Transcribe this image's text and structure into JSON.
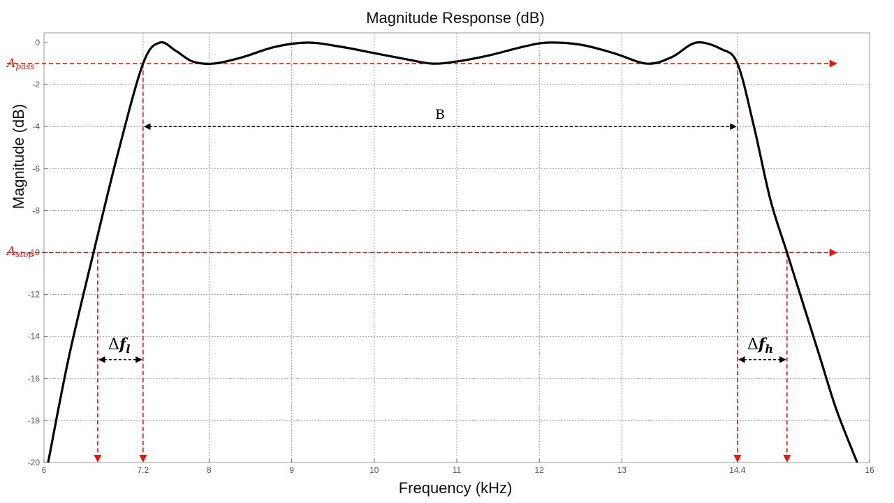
{
  "chart_data": {
    "type": "line",
    "title": "Magnitude Response (dB)",
    "xlabel": "Frequency (kHz)",
    "ylabel": "Magnitude (dB)",
    "xlim": [
      6,
      16
    ],
    "ylim": [
      -20,
      0.5
    ],
    "grid": true,
    "x_ticks": [
      "6",
      "7.2",
      "8",
      "9",
      "10",
      "11",
      "12",
      "13",
      "14.4",
      "16"
    ],
    "y_ticks": [
      "0",
      "-2",
      "-4",
      "-6",
      "-8",
      "-10",
      "-12",
      "-14",
      "-16",
      "-18",
      "-20"
    ],
    "series": [
      {
        "x": [
          6.05,
          6.3,
          6.6,
          6.9,
          7.2,
          7.4,
          7.6,
          7.8,
          8.05,
          8.4,
          8.8,
          9.2,
          9.6,
          10.0,
          10.4,
          10.7,
          11.0,
          11.4,
          11.8,
          12.1,
          12.5,
          12.9,
          13.3,
          13.6,
          13.9,
          14.2,
          14.4,
          14.6,
          14.8,
          15.0,
          15.2,
          15.4,
          15.6,
          15.85
        ],
        "y": [
          -20.0,
          -15.0,
          -10.0,
          -5.2,
          -1.0,
          0.0,
          -0.4,
          -0.9,
          -1.0,
          -0.7,
          -0.2,
          0.0,
          -0.2,
          -0.5,
          -0.8,
          -1.0,
          -0.9,
          -0.6,
          -0.2,
          0.0,
          -0.1,
          -0.5,
          -1.0,
          -0.7,
          0.0,
          -0.3,
          -1.0,
          -4.0,
          -7.5,
          -10.0,
          -12.5,
          -15.0,
          -17.5,
          -20.0
        ]
      }
    ],
    "annotations": {
      "a_pass": {
        "label": "A",
        "sub": "pass",
        "y": -1
      },
      "a_stop": {
        "label": "A",
        "sub": "stop",
        "y": -10
      },
      "bandwidth": {
        "label": "B",
        "x1": 7.2,
        "x2": 14.4,
        "y": -4
      },
      "delta_fl": {
        "label": "Δ",
        "f": "f",
        "sub": "l",
        "x1": 6.65,
        "x2": 7.2,
        "y": -15.1
      },
      "delta_fh": {
        "label": "Δ",
        "f": "f",
        "sub": "h",
        "x1": 14.4,
        "x2": 15.0,
        "y": -15.1
      },
      "markers_x": [
        6.65,
        7.2,
        14.4,
        15.0
      ],
      "arrow_end_x": 15.6
    },
    "colors": {
      "curve": "#000000",
      "annotation": "#e8160c",
      "arrow": "#000000",
      "grid": "#9a9a9a",
      "frame": "#9a9a9a"
    }
  }
}
